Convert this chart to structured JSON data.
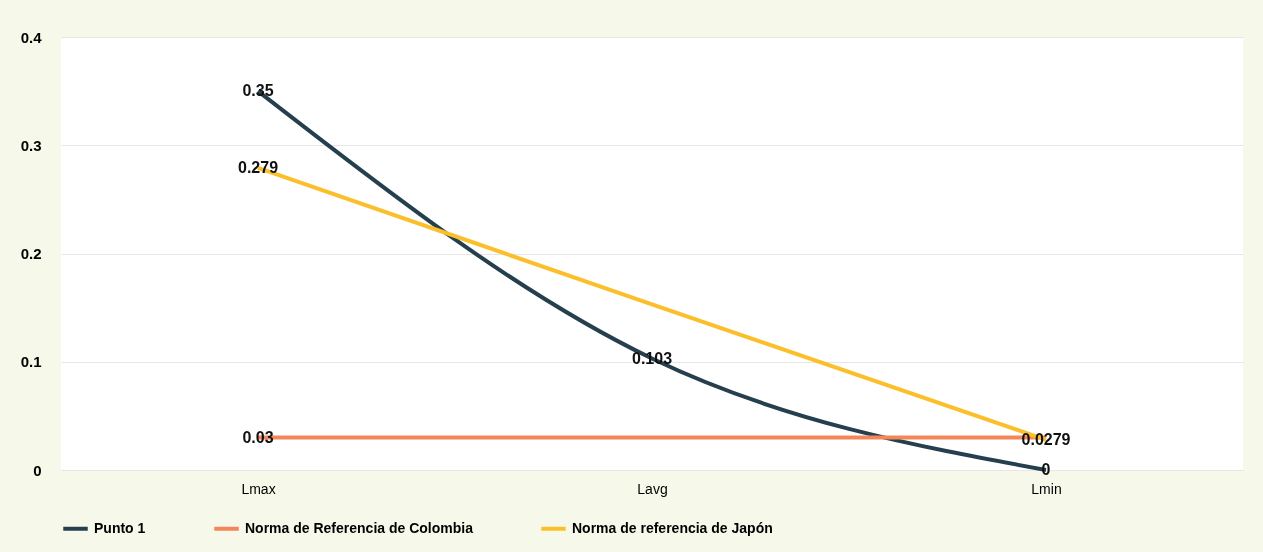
{
  "chart_data": {
    "type": "line",
    "categories": [
      "Lmax",
      "Lavg",
      "Lmin"
    ],
    "series": [
      {
        "name": "Punto 1",
        "color": "#263f4f",
        "values": [
          0.35,
          0.103,
          0
        ],
        "value_labels": [
          "0.35",
          "0.103",
          "0"
        ]
      },
      {
        "name": "Norma de Referencia de Colombia",
        "color": "#f4875a",
        "values": [
          0.03,
          0.03,
          0.03
        ],
        "value_labels": [
          "0.03",
          null,
          null
        ]
      },
      {
        "name": "Norma de  referencia de Japón",
        "color": "#fbbf2b",
        "values": [
          0.279,
          0.153,
          0.0279
        ],
        "value_labels": [
          "0.279",
          null,
          "0.0279"
        ]
      }
    ],
    "ylim": [
      0,
      0.4
    ],
    "yticks": [
      0,
      0.1,
      0.2,
      0.3,
      0.4
    ],
    "grid": "y",
    "legend": "bottom"
  }
}
